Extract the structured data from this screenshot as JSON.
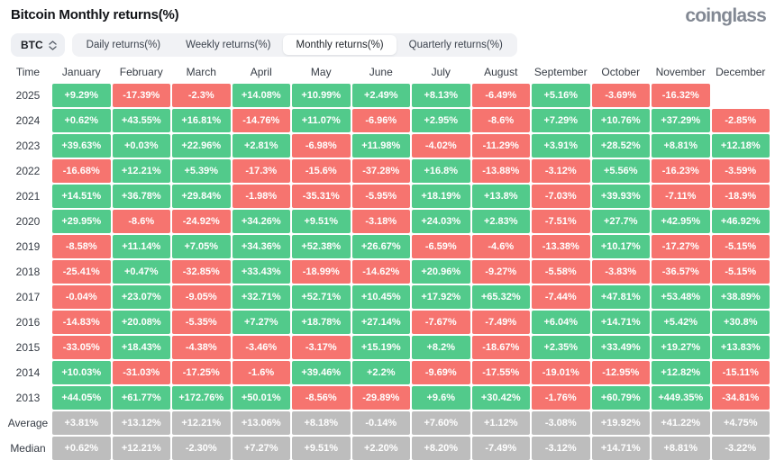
{
  "header": {
    "title": "Bitcoin Monthly returns(%)",
    "logo": "coinglass"
  },
  "controls": {
    "coin_selector": {
      "label": "BTC"
    },
    "tabs": [
      {
        "id": "daily",
        "label": "Daily returns(%)",
        "active": false
      },
      {
        "id": "weekly",
        "label": "Weekly returns(%)",
        "active": false
      },
      {
        "id": "monthly",
        "label": "Monthly returns(%)",
        "active": true
      },
      {
        "id": "quarterly",
        "label": "Quarterly returns(%)",
        "active": false
      }
    ]
  },
  "colors": {
    "positive": "#52ca8b",
    "negative": "#f6746f",
    "summary": "#bdbdbd"
  },
  "table": {
    "columns": [
      "Time",
      "January",
      "February",
      "March",
      "April",
      "May",
      "June",
      "July",
      "August",
      "September",
      "October",
      "November",
      "December"
    ],
    "rows": [
      {
        "label": "2025",
        "summary": false,
        "values": [
          "+9.29%",
          "-17.39%",
          "-2.3%",
          "+14.08%",
          "+10.99%",
          "+2.49%",
          "+8.13%",
          "-6.49%",
          "+5.16%",
          "-3.69%",
          "-16.32%",
          ""
        ]
      },
      {
        "label": "2024",
        "summary": false,
        "values": [
          "+0.62%",
          "+43.55%",
          "+16.81%",
          "-14.76%",
          "+11.07%",
          "-6.96%",
          "+2.95%",
          "-8.6%",
          "+7.29%",
          "+10.76%",
          "+37.29%",
          "-2.85%"
        ]
      },
      {
        "label": "2023",
        "summary": false,
        "values": [
          "+39.63%",
          "+0.03%",
          "+22.96%",
          "+2.81%",
          "-6.98%",
          "+11.98%",
          "-4.02%",
          "-11.29%",
          "+3.91%",
          "+28.52%",
          "+8.81%",
          "+12.18%"
        ]
      },
      {
        "label": "2022",
        "summary": false,
        "values": [
          "-16.68%",
          "+12.21%",
          "+5.39%",
          "-17.3%",
          "-15.6%",
          "-37.28%",
          "+16.8%",
          "-13.88%",
          "-3.12%",
          "+5.56%",
          "-16.23%",
          "-3.59%"
        ]
      },
      {
        "label": "2021",
        "summary": false,
        "values": [
          "+14.51%",
          "+36.78%",
          "+29.84%",
          "-1.98%",
          "-35.31%",
          "-5.95%",
          "+18.19%",
          "+13.8%",
          "-7.03%",
          "+39.93%",
          "-7.11%",
          "-18.9%"
        ]
      },
      {
        "label": "2020",
        "summary": false,
        "values": [
          "+29.95%",
          "-8.6%",
          "-24.92%",
          "+34.26%",
          "+9.51%",
          "-3.18%",
          "+24.03%",
          "+2.83%",
          "-7.51%",
          "+27.7%",
          "+42.95%",
          "+46.92%"
        ]
      },
      {
        "label": "2019",
        "summary": false,
        "values": [
          "-8.58%",
          "+11.14%",
          "+7.05%",
          "+34.36%",
          "+52.38%",
          "+26.67%",
          "-6.59%",
          "-4.6%",
          "-13.38%",
          "+10.17%",
          "-17.27%",
          "-5.15%"
        ]
      },
      {
        "label": "2018",
        "summary": false,
        "values": [
          "-25.41%",
          "+0.47%",
          "-32.85%",
          "+33.43%",
          "-18.99%",
          "-14.62%",
          "+20.96%",
          "-9.27%",
          "-5.58%",
          "-3.83%",
          "-36.57%",
          "-5.15%"
        ]
      },
      {
        "label": "2017",
        "summary": false,
        "values": [
          "-0.04%",
          "+23.07%",
          "-9.05%",
          "+32.71%",
          "+52.71%",
          "+10.45%",
          "+17.92%",
          "+65.32%",
          "-7.44%",
          "+47.81%",
          "+53.48%",
          "+38.89%"
        ]
      },
      {
        "label": "2016",
        "summary": false,
        "values": [
          "-14.83%",
          "+20.08%",
          "-5.35%",
          "+7.27%",
          "+18.78%",
          "+27.14%",
          "-7.67%",
          "-7.49%",
          "+6.04%",
          "+14.71%",
          "+5.42%",
          "+30.8%"
        ]
      },
      {
        "label": "2015",
        "summary": false,
        "values": [
          "-33.05%",
          "+18.43%",
          "-4.38%",
          "-3.46%",
          "-3.17%",
          "+15.19%",
          "+8.2%",
          "-18.67%",
          "+2.35%",
          "+33.49%",
          "+19.27%",
          "+13.83%"
        ]
      },
      {
        "label": "2014",
        "summary": false,
        "values": [
          "+10.03%",
          "-31.03%",
          "-17.25%",
          "-1.6%",
          "+39.46%",
          "+2.2%",
          "-9.69%",
          "-17.55%",
          "-19.01%",
          "-12.95%",
          "+12.82%",
          "-15.11%"
        ]
      },
      {
        "label": "2013",
        "summary": false,
        "values": [
          "+44.05%",
          "+61.77%",
          "+172.76%",
          "+50.01%",
          "-8.56%",
          "-29.89%",
          "+9.6%",
          "+30.42%",
          "-1.76%",
          "+60.79%",
          "+449.35%",
          "-34.81%"
        ]
      },
      {
        "label": "Average",
        "summary": true,
        "values": [
          "+3.81%",
          "+13.12%",
          "+12.21%",
          "+13.06%",
          "+8.18%",
          "-0.14%",
          "+7.60%",
          "+1.12%",
          "-3.08%",
          "+19.92%",
          "+41.22%",
          "+4.75%"
        ]
      },
      {
        "label": "Median",
        "summary": true,
        "values": [
          "+0.62%",
          "+12.21%",
          "-2.30%",
          "+7.27%",
          "+9.51%",
          "+2.20%",
          "+8.20%",
          "-7.49%",
          "-3.12%",
          "+14.71%",
          "+8.81%",
          "-3.22%"
        ]
      }
    ]
  }
}
